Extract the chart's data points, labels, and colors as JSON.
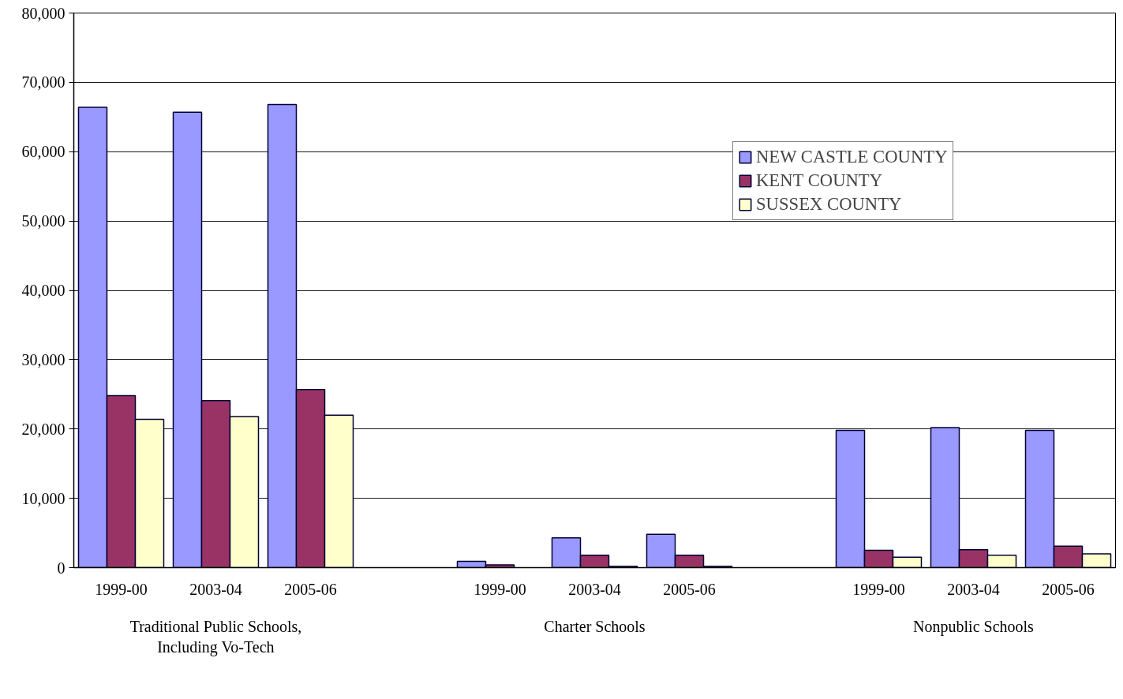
{
  "chart_data": {
    "type": "bar",
    "categories": [
      "1999-00",
      "2003-04",
      "2005-06",
      null,
      "1999-00",
      "2003-04",
      "2005-06",
      null,
      "1999-00",
      "2003-04",
      "2005-06"
    ],
    "series": [
      {
        "name": "NEW CASTLE COUNTY",
        "color": "#9999ff",
        "values": [
          66400,
          65700,
          66800,
          null,
          900,
          4300,
          4800,
          null,
          19800,
          20200,
          19800
        ]
      },
      {
        "name": "KENT COUNTY",
        "color": "#993366",
        "values": [
          24800,
          24100,
          25700,
          null,
          400,
          1800,
          1800,
          null,
          2500,
          2600,
          3100
        ]
      },
      {
        "name": "SUSSEX COUNTY",
        "color": "#ffffcc",
        "values": [
          21400,
          21800,
          22000,
          null,
          null,
          200,
          200,
          null,
          1500,
          1800,
          2000
        ]
      }
    ],
    "ylim": [
      0,
      80000
    ],
    "yticks": [
      {
        "value": 0,
        "label": "0"
      },
      {
        "value": 10000,
        "label": "10,000"
      },
      {
        "value": 20000,
        "label": "20,000"
      },
      {
        "value": 30000,
        "label": "30,000"
      },
      {
        "value": 40000,
        "label": "40,000"
      },
      {
        "value": 50000,
        "label": "50,000"
      },
      {
        "value": 60000,
        "label": "60,000"
      },
      {
        "value": 70000,
        "label": "70,000"
      },
      {
        "value": 80000,
        "label": "80,000"
      }
    ],
    "grid": "y",
    "legend": "top right",
    "annotations": [
      "Traditional Public Schools,\nIncluding Vo-Tech",
      "Charter Schools",
      "Nonpublic Schools"
    ]
  }
}
